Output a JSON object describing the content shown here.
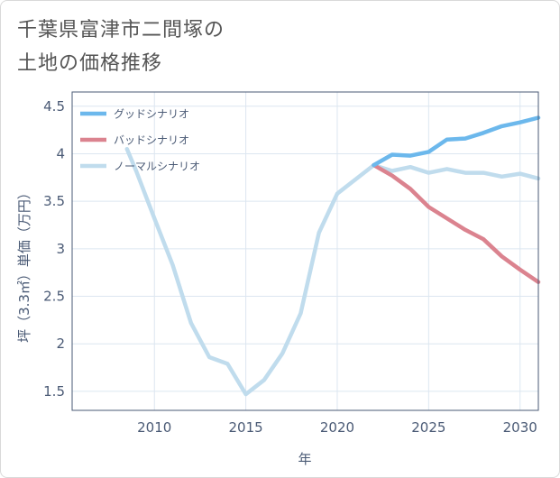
{
  "title_line1": "千葉県富津市二間塚の",
  "title_line2": "土地の価格推移",
  "chart_data": {
    "type": "line",
    "xlabel": "年",
    "ylabel": "坪（3.3㎡）単価（万円）",
    "xlim": [
      2005.5,
      2031
    ],
    "ylim": [
      1.3,
      4.65
    ],
    "x_ticks": [
      2010,
      2015,
      2020,
      2025,
      2030
    ],
    "y_ticks": [
      1.5,
      2,
      2.5,
      3,
      3.5,
      4,
      4.5
    ],
    "x_tick_labels": [
      "2010",
      "2015",
      "2020",
      "2025",
      "2030"
    ],
    "y_tick_labels": [
      "1.5",
      "2",
      "2.5",
      "3",
      "3.5",
      "4",
      "4.5"
    ],
    "grid": true,
    "legend_position": "top-left",
    "series": [
      {
        "name": "グッドシナリオ",
        "color": "#6cb8ec",
        "x": [
          2022,
          2023,
          2024,
          2025,
          2026,
          2027,
          2028,
          2029,
          2030,
          2031
        ],
        "y": [
          3.88,
          3.99,
          3.98,
          4.02,
          4.15,
          4.16,
          4.22,
          4.29,
          4.33,
          4.38
        ]
      },
      {
        "name": "バッドシナリオ",
        "color": "#db838f",
        "x": [
          2022,
          2023,
          2024,
          2025,
          2026,
          2027,
          2028,
          2029,
          2030,
          2031
        ],
        "y": [
          3.88,
          3.77,
          3.63,
          3.44,
          3.32,
          3.2,
          3.1,
          2.92,
          2.78,
          2.65
        ]
      },
      {
        "name": "ノーマルシナリオ",
        "color": "#c0dced",
        "x": [
          2008.5,
          2009,
          2010,
          2011,
          2012,
          2013,
          2014,
          2015,
          2016,
          2017,
          2018,
          2019,
          2020,
          2021,
          2022,
          2023,
          2024,
          2025,
          2026,
          2027,
          2028,
          2029,
          2030,
          2031
        ],
        "y": [
          4.05,
          3.82,
          3.32,
          2.83,
          2.22,
          1.86,
          1.79,
          1.47,
          1.62,
          1.9,
          2.32,
          3.17,
          3.58,
          3.73,
          3.88,
          3.82,
          3.86,
          3.8,
          3.84,
          3.8,
          3.8,
          3.76,
          3.79,
          3.74
        ]
      }
    ]
  }
}
